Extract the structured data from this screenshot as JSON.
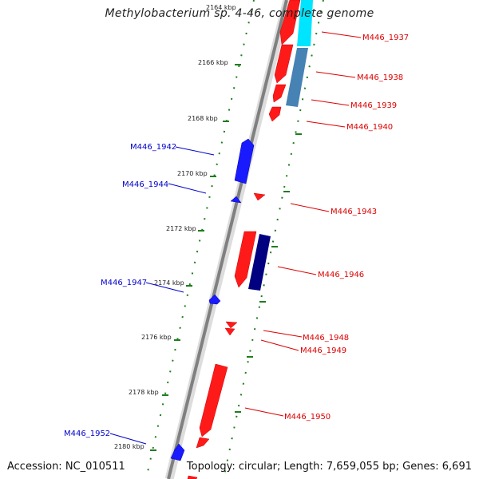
{
  "title": "Methylobacterium sp. 4-46, complete genome",
  "accession": "Accession: NC_010511",
  "topology": "Topology: circular; Length: 7,659,055 bp; Genes: 6,691",
  "colors": {
    "forward": "#ff1a1a",
    "reverse": "#1a1aff",
    "forward_label": "#dd0000",
    "reverse_label": "#0000cc",
    "tick": "#1e7d1e",
    "backbone": "#808080",
    "cds_cyan": "#00e5ff",
    "cds_steel": "#4682b4",
    "cds_navy": "#000080"
  },
  "kbp_labels": [
    "2164 kbp",
    "2166 kbp",
    "2168 kbp",
    "2170 kbp",
    "2172 kbp",
    "2174 kbp",
    "2176 kbp",
    "2178 kbp",
    "2180 kbp"
  ],
  "genes": {
    "g1937": "M446_1937",
    "g1938": "M446_1938",
    "g1939": "M446_1939",
    "g1940": "M446_1940",
    "g1942": "M446_1942",
    "g1943": "M446_1943",
    "g1944": "M446_1944",
    "g1946": "M446_1946",
    "g1947": "M446_1947",
    "g1948": "M446_1948",
    "g1949": "M446_1949",
    "g1950": "M446_1950",
    "g1952": "M446_1952"
  }
}
